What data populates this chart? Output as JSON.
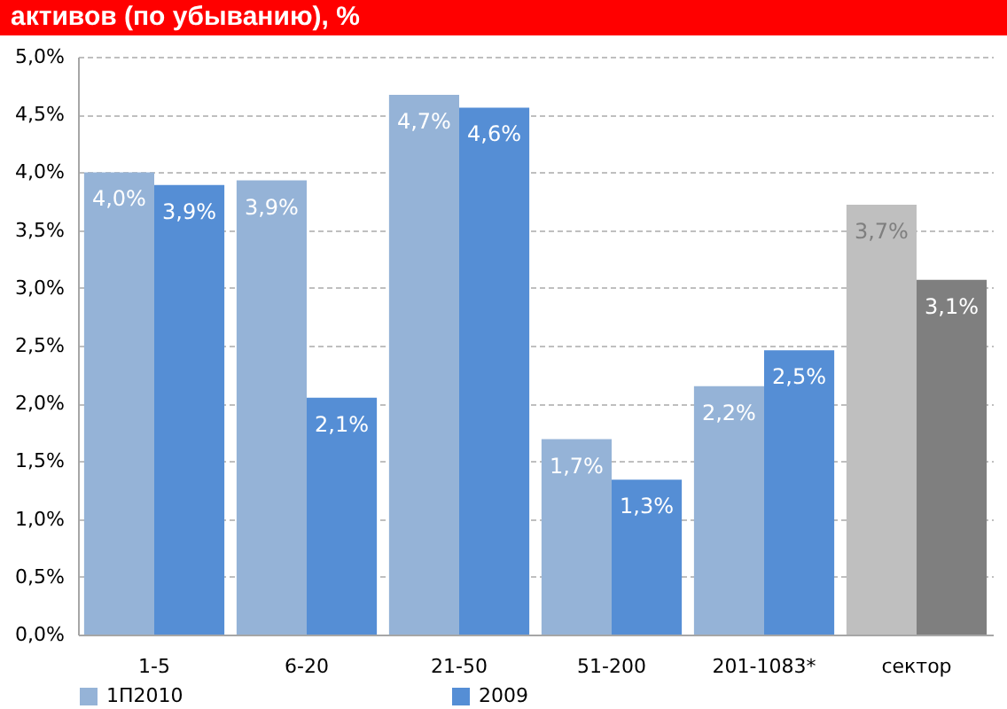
{
  "chart_data": {
    "type": "bar",
    "title": "активов (по убыванию), %",
    "categories": [
      "1-5",
      "6-20",
      "21-50",
      "51-200",
      "201-1083*",
      "сектор"
    ],
    "series": [
      {
        "name": "1П2010",
        "color": "#95b3d7",
        "colors": [
          "#95b3d7",
          "#95b3d7",
          "#95b3d7",
          "#95b3d7",
          "#95b3d7",
          "#bfbfbf"
        ],
        "values": [
          4.0,
          3.93,
          4.67,
          1.69,
          2.15,
          3.72
        ],
        "value_labels": [
          "4,0%",
          "3,9%",
          "4,7%",
          "1,7%",
          "2,2%",
          "3,7%"
        ]
      },
      {
        "name": "2009",
        "color": "#558ed5",
        "colors": [
          "#558ed5",
          "#558ed5",
          "#558ed5",
          "#558ed5",
          "#558ed5",
          "#7f7f7f"
        ],
        "values": [
          3.89,
          2.05,
          4.56,
          1.34,
          2.46,
          3.07
        ],
        "value_labels": [
          "3,9%",
          "2,1%",
          "4,6%",
          "1,3%",
          "2,5%",
          "3,1%"
        ]
      }
    ],
    "ylim": [
      0,
      5
    ],
    "yticks": [
      {
        "value": 0,
        "label": "0,0%"
      },
      {
        "value": 0.5,
        "label": "0,5%"
      },
      {
        "value": 1,
        "label": "1,0%"
      },
      {
        "value": 1.5,
        "label": "1,5%"
      },
      {
        "value": 2,
        "label": "2,0%"
      },
      {
        "value": 2.5,
        "label": "2,5%"
      },
      {
        "value": 3,
        "label": "3,0%"
      },
      {
        "value": 3.5,
        "label": "3,5%"
      },
      {
        "value": 4,
        "label": "4,0%"
      },
      {
        "value": 4.5,
        "label": "4,5%"
      },
      {
        "value": 5,
        "label": "5,0%"
      }
    ],
    "grid": "y",
    "legend": "bottom"
  }
}
